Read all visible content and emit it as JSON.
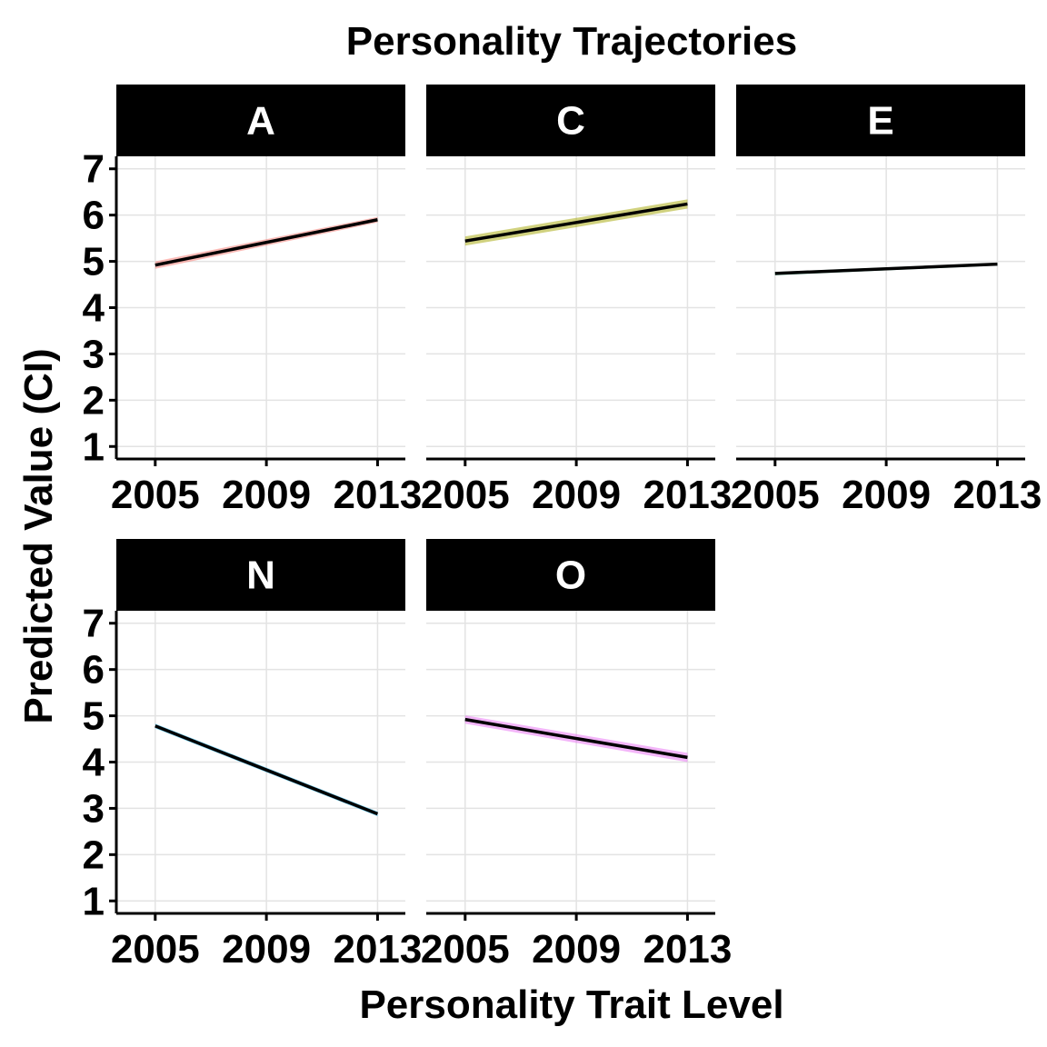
{
  "title": "Personality Trajectories",
  "xlabel": "Personality Trait Level",
  "ylabel": "Predicted Value (CI)",
  "chart_data": {
    "type": "line",
    "title": "Personality Trajectories",
    "xlabel": "Personality Trait Level",
    "ylabel": "Predicted Value (CI)",
    "xlim": [
      2003.6,
      2014.0
    ],
    "ylim": [
      0.73,
      7.27
    ],
    "x_ticks": [
      2005,
      2009,
      2013
    ],
    "y_ticks": [
      1,
      2,
      3,
      4,
      5,
      6,
      7
    ],
    "grid": true,
    "line_color": "#000000",
    "panels": [
      {
        "name": "A",
        "color": "#F8766D",
        "x": [
          2005,
          2013
        ],
        "y": [
          4.92,
          5.9
        ],
        "lower": [
          4.84,
          5.84
        ],
        "upper": [
          5.0,
          5.96
        ]
      },
      {
        "name": "C",
        "color": "#A3A500",
        "x": [
          2005,
          2013
        ],
        "y": [
          5.44,
          6.24
        ],
        "lower": [
          5.34,
          6.14
        ],
        "upper": [
          5.54,
          6.34
        ]
      },
      {
        "name": "E",
        "color": "#00BF7D",
        "x": [
          2005,
          2013
        ],
        "y": [
          4.74,
          4.94
        ],
        "lower": [
          4.7,
          4.91
        ],
        "upper": [
          4.77,
          4.97
        ]
      },
      {
        "name": "N",
        "color": "#00B0F6",
        "x": [
          2005,
          2013
        ],
        "y": [
          4.78,
          2.88
        ],
        "lower": [
          4.73,
          2.83
        ],
        "upper": [
          4.83,
          2.93
        ]
      },
      {
        "name": "O",
        "color": "#E76BF3",
        "x": [
          2005,
          2013
        ],
        "y": [
          4.92,
          4.1
        ],
        "lower": [
          4.83,
          4.0
        ],
        "upper": [
          5.01,
          4.2
        ]
      }
    ]
  }
}
